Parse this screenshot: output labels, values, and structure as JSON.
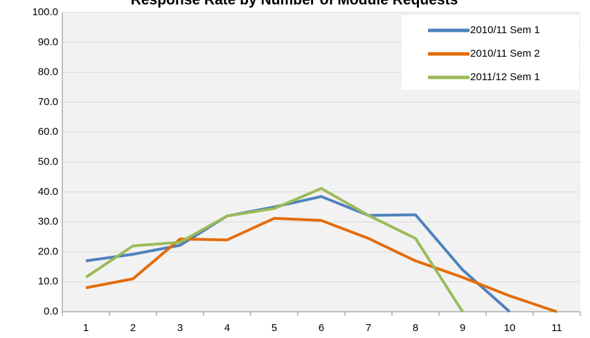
{
  "chart_data": {
    "type": "line",
    "title": "Response Rate by Number of Module Requests",
    "categories": [
      "1",
      "2",
      "3",
      "4",
      "5",
      "6",
      "7",
      "8",
      "9",
      "10",
      "11"
    ],
    "series": [
      {
        "name": "2010/11 Sem 1",
        "color": "#4f81bd",
        "values": [
          17,
          19.2,
          22.2,
          32,
          35,
          38.5,
          32.2,
          32.4,
          14,
          0,
          null
        ]
      },
      {
        "name": "2010/11 Sem 2",
        "color": "#e46c0a",
        "values": [
          8,
          11,
          24.3,
          24,
          31.2,
          30.5,
          24.5,
          17,
          11.5,
          5.3,
          0
        ]
      },
      {
        "name": "2011/12 Sem 1",
        "color": "#9bbb59",
        "values": [
          11.5,
          22,
          23.2,
          32,
          34.5,
          41.2,
          32.2,
          24.5,
          0,
          null,
          null
        ]
      }
    ],
    "ylim": [
      0,
      100
    ],
    "yticks": [
      {
        "value": 0,
        "label": "0.0"
      },
      {
        "value": 10,
        "label": "10.0"
      },
      {
        "value": 20,
        "label": "20.0"
      },
      {
        "value": 30,
        "label": "30.0"
      },
      {
        "value": 40,
        "label": "40.0"
      },
      {
        "value": 50,
        "label": "50.0"
      },
      {
        "value": 60,
        "label": "60.0"
      },
      {
        "value": 70,
        "label": "70.0"
      },
      {
        "value": 80,
        "label": "80.0"
      },
      {
        "value": 90,
        "label": "90.0"
      },
      {
        "value": 100,
        "label": "100.0"
      }
    ],
    "grid": true,
    "legend": "top-right"
  }
}
